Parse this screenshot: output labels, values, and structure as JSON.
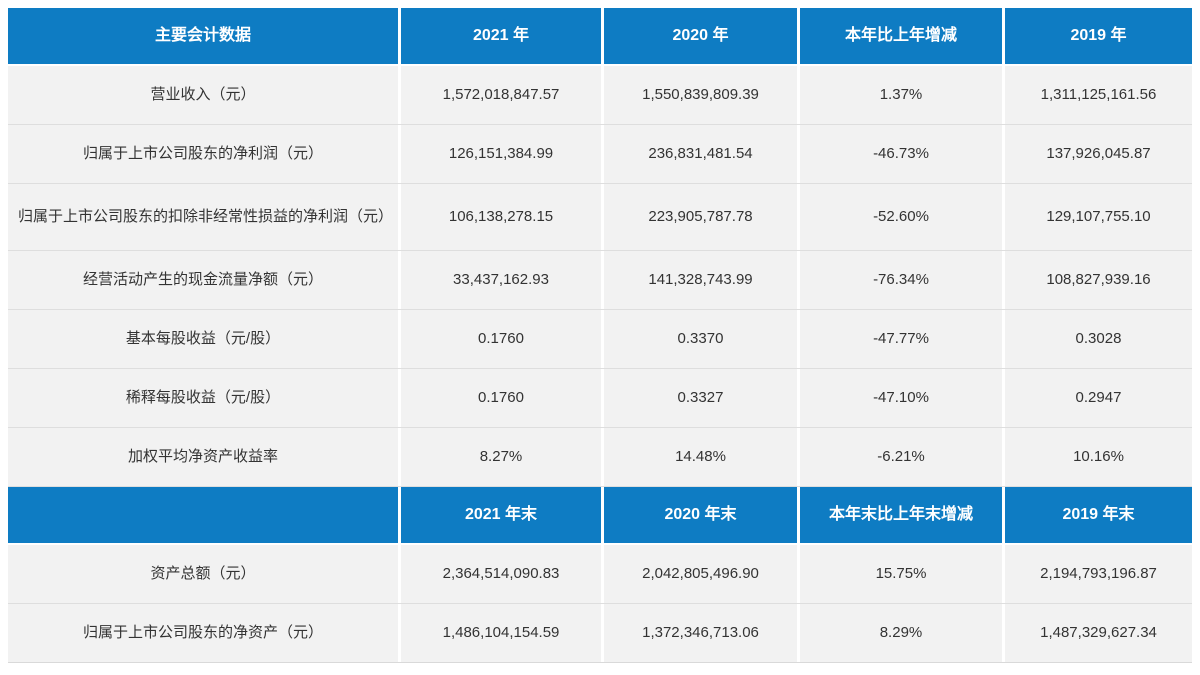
{
  "colors": {
    "header_bg": "#0e7cc3",
    "header_text": "#ffffff",
    "cell_bg": "#f2f2f2",
    "cell_text": "#333333",
    "divider": "#dedede"
  },
  "table": {
    "section1": {
      "headers": [
        "主要会计数据",
        "2021 年",
        "2020 年",
        "本年比上年增减",
        "2019 年"
      ],
      "rows": [
        [
          "营业收入（元）",
          "1,572,018,847.57",
          "1,550,839,809.39",
          "1.37%",
          "1,311,125,161.56"
        ],
        [
          "归属于上市公司股东的净利润（元）",
          "126,151,384.99",
          "236,831,481.54",
          "-46.73%",
          "137,926,045.87"
        ],
        [
          "归属于上市公司股东的扣除非经常性损益的净利润（元）",
          "106,138,278.15",
          "223,905,787.78",
          "-52.60%",
          "129,107,755.10"
        ],
        [
          "经营活动产生的现金流量净额（元）",
          "33,437,162.93",
          "141,328,743.99",
          "-76.34%",
          "108,827,939.16"
        ],
        [
          "基本每股收益（元/股）",
          "0.1760",
          "0.3370",
          "-47.77%",
          "0.3028"
        ],
        [
          "稀释每股收益（元/股）",
          "0.1760",
          "0.3327",
          "-47.10%",
          "0.2947"
        ],
        [
          "加权平均净资产收益率",
          "8.27%",
          "14.48%",
          "-6.21%",
          "10.16%"
        ]
      ]
    },
    "section2": {
      "headers": [
        "",
        "2021 年末",
        "2020 年末",
        "本年末比上年末增减",
        "2019 年末"
      ],
      "rows": [
        [
          "资产总额（元）",
          "2,364,514,090.83",
          "2,042,805,496.90",
          "15.75%",
          "2,194,793,196.87"
        ],
        [
          "归属于上市公司股东的净资产（元）",
          "1,486,104,154.59",
          "1,372,346,713.06",
          "8.29%",
          "1,487,329,627.34"
        ]
      ]
    }
  }
}
